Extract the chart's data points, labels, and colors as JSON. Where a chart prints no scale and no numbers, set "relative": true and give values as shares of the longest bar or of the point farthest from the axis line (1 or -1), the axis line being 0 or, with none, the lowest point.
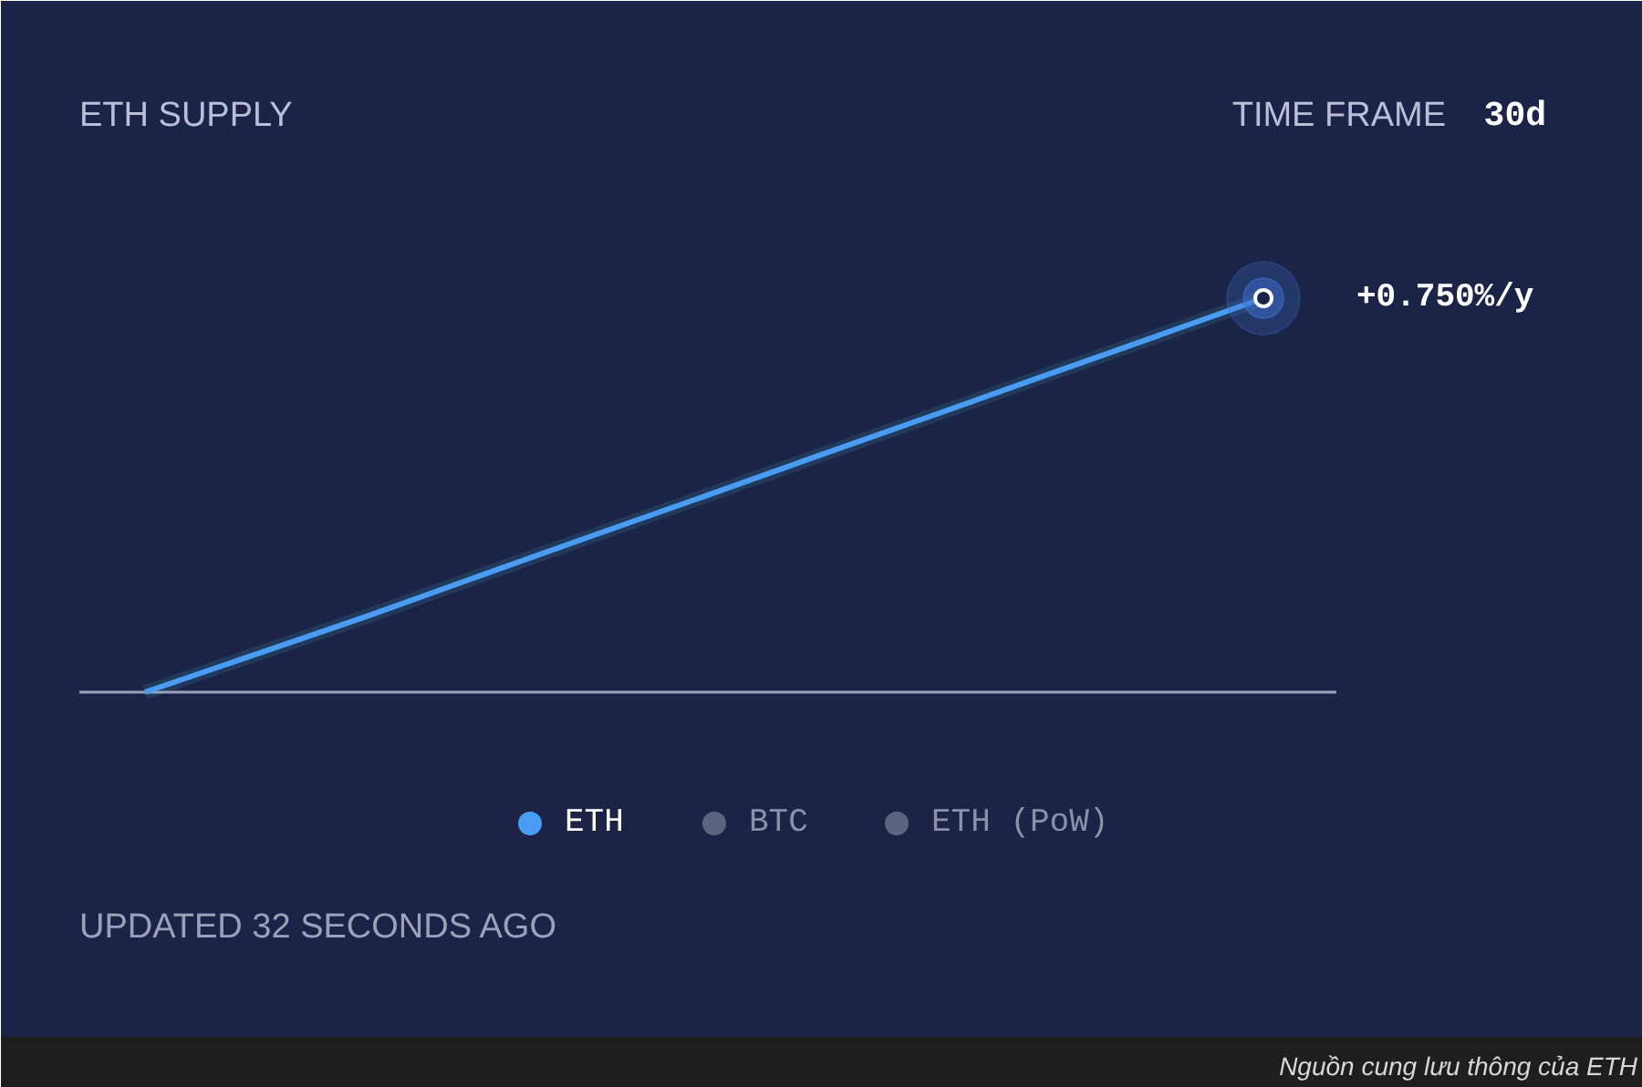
{
  "chart_data": {
    "type": "line",
    "title": "ETH SUPPLY",
    "relative": true,
    "categories": [
      null,
      null,
      null,
      null,
      null,
      null,
      null,
      null,
      null,
      null,
      null
    ],
    "series": [
      {
        "name": "ETH",
        "color": "#4a9cf2",
        "values": [
          0,
          0.097,
          0.194,
          0.296,
          0.397,
          0.497,
          0.598,
          0.698,
          0.799,
          0.899,
          1.0
        ]
      },
      {
        "name": "BTC",
        "color": "#5c6580",
        "values": [
          null,
          null,
          null,
          null,
          null,
          null,
          null,
          null,
          null,
          null,
          null
        ]
      },
      {
        "name": "ETH (PoW)",
        "color": "#5c6580",
        "values": [
          null,
          null,
          null,
          null,
          null,
          null,
          null,
          null,
          null,
          null,
          null
        ]
      }
    ],
    "legend": "bottom",
    "marker": "none",
    "line_style": "solid",
    "grid": false,
    "annotations": [
      "TIME FRAME",
      "30d",
      "+0.750%/y",
      "UPDATED 32 SECONDS AGO",
      "Nguồn cung lưu thông của ETH"
    ]
  }
}
